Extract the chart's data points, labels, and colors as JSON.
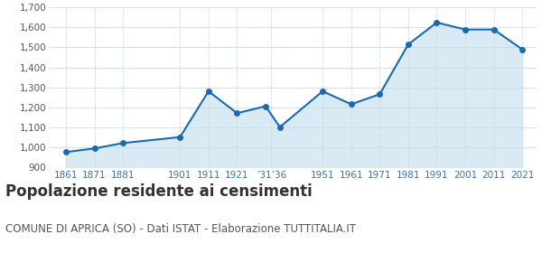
{
  "years": [
    1861,
    1871,
    1881,
    1901,
    1911,
    1921,
    1931,
    1936,
    1951,
    1961,
    1971,
    1981,
    1991,
    2001,
    2011,
    2021
  ],
  "population": [
    975,
    993,
    1020,
    1050,
    1280,
    1170,
    1205,
    1100,
    1280,
    1215,
    1265,
    1515,
    1625,
    1590,
    1590,
    1490
  ],
  "tick_labels": [
    "1861",
    "1871",
    "1881",
    "1901",
    "1911",
    "1921",
    "’31’36",
    "1951",
    "1961",
    "1971",
    "1981",
    "1991",
    "2001",
    "2011",
    "2021"
  ],
  "ylim": [
    900,
    1700
  ],
  "yticks": [
    900,
    1000,
    1100,
    1200,
    1300,
    1400,
    1500,
    1600,
    1700
  ],
  "line_color": "#1a6aad",
  "fill_color": "#daeaf5",
  "marker_color": "#1a6aad",
  "bg_color": "#ffffff",
  "plot_bg_color": "#ffffff",
  "grid_color": "#c8dce8",
  "title": "Popolazione residente ai censimenti",
  "subtitle": "COMUNE DI APRICA (SO) - Dati ISTAT - Elaborazione TUTTITALIA.IT",
  "title_fontsize": 12,
  "subtitle_fontsize": 8.5
}
